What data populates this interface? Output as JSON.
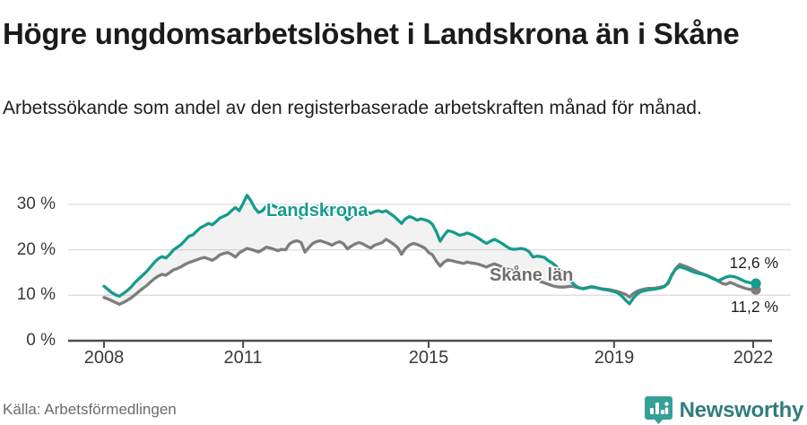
{
  "header": {
    "title": "Högre ungdomsarbetslöshet i Landskrona än i Skåne",
    "subtitle": "Arbetssökande som andel av den registerbaserade arbetskraften månad för månad."
  },
  "chart_data": {
    "type": "line",
    "title": "Högre ungdomsarbetslöshet i Landskrona än i Skåne",
    "x_start": "2008-01",
    "x_end": "2022-01",
    "x_interval": "monthly",
    "unit": "%",
    "grid": "horizontal",
    "ylim": [
      0,
      34
    ],
    "y_tick_labels": [
      "0 %",
      "10 %",
      "20 %",
      "30 %"
    ],
    "y_tick_values": [
      0,
      10,
      20,
      30
    ],
    "x_tick_labels": [
      "2008",
      "2011",
      "2015",
      "2019",
      "2022"
    ],
    "x_tick_month_indices": [
      0,
      36,
      84,
      132,
      168
    ],
    "series": [
      {
        "name": "Landskrona",
        "color": "#169b8d",
        "end_label": "12,6 %",
        "end_value": 12.6,
        "values": [
          12.0,
          11.3,
          10.6,
          10.1,
          9.8,
          10.4,
          11.0,
          11.8,
          12.8,
          13.6,
          14.4,
          15.2,
          16.2,
          17.2,
          18.0,
          18.5,
          18.2,
          19.0,
          20.0,
          20.6,
          21.2,
          22.1,
          23.0,
          23.3,
          24.1,
          24.9,
          25.3,
          25.8,
          25.5,
          26.2,
          27.0,
          27.4,
          27.8,
          28.6,
          29.3,
          28.6,
          30.2,
          32.0,
          30.8,
          29.2,
          28.2,
          28.6,
          29.6,
          30.0,
          29.6,
          29.2,
          29.0,
          28.8,
          28.5,
          28.9,
          28.3,
          27.0,
          27.8,
          28.5,
          29.3,
          29.6,
          29.2,
          28.8,
          28.5,
          28.2,
          28.6,
          28.9,
          28.0,
          26.6,
          27.3,
          28.2,
          29.0,
          28.8,
          28.4,
          28.0,
          28.4,
          28.6,
          28.3,
          28.6,
          28.0,
          27.4,
          26.6,
          25.8,
          26.8,
          27.3,
          27.0,
          26.5,
          26.8,
          26.6,
          26.3,
          25.6,
          24.0,
          21.9,
          23.2,
          24.2,
          24.0,
          23.6,
          23.2,
          23.4,
          23.7,
          23.4,
          23.0,
          22.5,
          21.9,
          21.4,
          21.9,
          22.3,
          21.9,
          21.4,
          20.8,
          20.3,
          20.1,
          20.2,
          20.3,
          20.1,
          19.6,
          18.4,
          18.6,
          18.5,
          18.3,
          17.6,
          17.1,
          16.4,
          15.6,
          14.8,
          13.8,
          12.9,
          12.1,
          11.6,
          11.4,
          11.6,
          11.8,
          11.7,
          11.5,
          11.3,
          11.2,
          11.0,
          10.8,
          10.5,
          9.8,
          8.9,
          8.1,
          9.4,
          10.3,
          10.8,
          11.0,
          11.2,
          11.3,
          11.4,
          11.6,
          11.9,
          12.8,
          14.6,
          15.8,
          16.3,
          16.0,
          15.7,
          15.3,
          15.0,
          14.8,
          14.6,
          14.3,
          13.9,
          13.5,
          13.2,
          13.6,
          14.0,
          14.2,
          14.1,
          13.8,
          13.4,
          13.0,
          12.8,
          12.6
        ]
      },
      {
        "name": "Skåne län",
        "color": "#7d7d7d",
        "end_label": "11,2 %",
        "end_value": 11.2,
        "values": [
          9.5,
          9.2,
          8.8,
          8.4,
          8.0,
          8.4,
          8.9,
          9.4,
          10.1,
          10.8,
          11.5,
          12.1,
          12.9,
          13.6,
          14.2,
          14.6,
          14.4,
          15.0,
          15.6,
          15.9,
          16.3,
          16.8,
          17.2,
          17.5,
          17.8,
          18.1,
          18.3,
          18.0,
          17.7,
          18.2,
          18.9,
          19.2,
          19.4,
          19.0,
          18.4,
          19.3,
          19.8,
          20.3,
          20.1,
          19.8,
          19.5,
          20.0,
          20.6,
          20.4,
          20.1,
          19.8,
          20.1,
          20.0,
          21.3,
          21.8,
          22.0,
          21.6,
          19.5,
          20.5,
          21.4,
          21.8,
          22.0,
          21.7,
          21.4,
          21.0,
          21.5,
          21.8,
          21.3,
          20.2,
          20.8,
          21.3,
          21.6,
          21.3,
          20.8,
          20.4,
          21.0,
          21.3,
          21.6,
          22.3,
          21.8,
          21.2,
          20.5,
          19.0,
          20.3,
          21.0,
          21.4,
          21.2,
          20.8,
          20.4,
          19.4,
          18.9,
          17.5,
          16.4,
          17.3,
          17.8,
          17.6,
          17.4,
          17.2,
          17.0,
          17.3,
          17.1,
          17.0,
          16.8,
          16.5,
          16.2,
          16.6,
          16.9,
          16.6,
          16.2,
          15.9,
          15.6,
          15.4,
          15.2,
          15.0,
          14.7,
          14.3,
          13.8,
          13.4,
          13.0,
          12.7,
          12.4,
          12.1,
          11.9,
          11.8,
          11.8,
          11.9,
          12.0,
          11.8,
          11.6,
          11.5,
          11.7,
          11.9,
          11.8,
          11.6,
          11.4,
          11.3,
          11.2,
          11.0,
          10.8,
          10.5,
          10.2,
          9.6,
          10.4,
          10.9,
          11.2,
          11.4,
          11.5,
          11.5,
          11.6,
          11.8,
          12.0,
          12.6,
          14.5,
          15.9,
          16.8,
          16.5,
          16.2,
          15.8,
          15.4,
          15.0,
          14.7,
          14.4,
          14.0,
          13.6,
          13.1,
          12.6,
          12.4,
          12.8,
          12.5,
          12.1,
          11.8,
          11.5,
          11.3,
          11.2
        ]
      }
    ],
    "legend_position": "inline-on-lines"
  },
  "footer": {
    "source": "Källa: Arbetsförmedlingen",
    "brand": "Newsworthy"
  },
  "icons": {
    "brand_badge": "bar-chart-speech-bubble-icon"
  },
  "colors": {
    "accent_teal": "#169b8d",
    "series_gray": "#7d7d7d",
    "grid": "#dedede",
    "axis": "#4c4c4c",
    "band_fill": "rgba(0,0,0,0.05)",
    "text_dark": "#1a1c1b",
    "tick_text": "#3a3a3a",
    "source_text": "#6b6b6b",
    "brand_badge": "#35a096",
    "brand_text": "#327c7c"
  }
}
